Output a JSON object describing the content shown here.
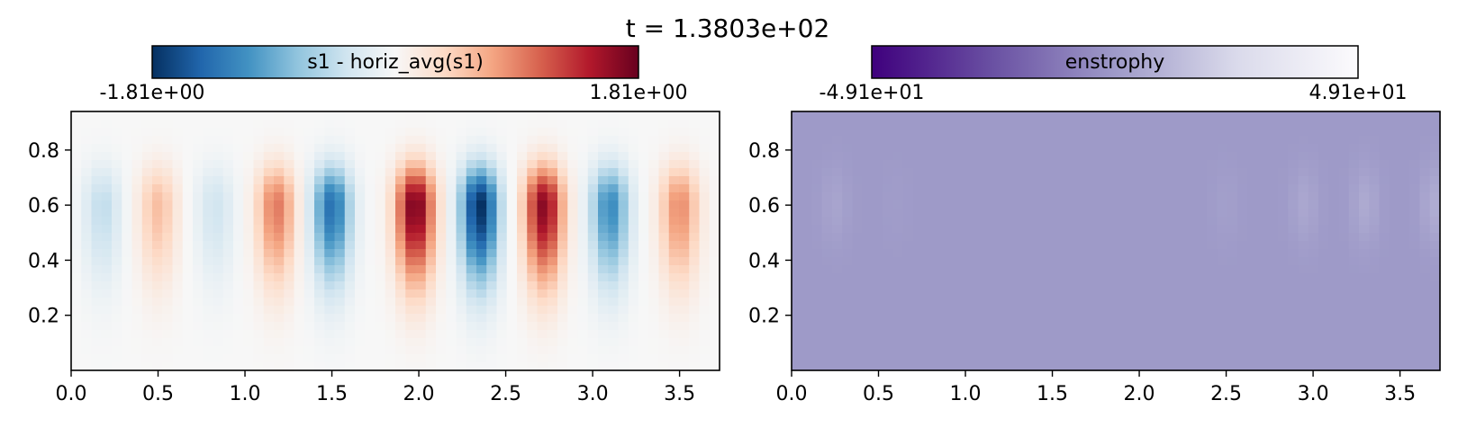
{
  "figure_title": "t = 1.3803e+02",
  "chart_data": [
    {
      "type": "heatmap",
      "colorbar_label": "s1 - horiz_avg(s1)",
      "colormap": "RdBu_r",
      "vmin_label": "-1.81e+00",
      "vmax_label": "1.81e+00",
      "vmin": -1.81,
      "vmax": 1.81,
      "xlim": [
        0,
        3.73
      ],
      "ylim": [
        0,
        0.94
      ],
      "xticks": [
        "0.0",
        "0.5",
        "1.0",
        "1.5",
        "2.0",
        "2.5",
        "3.0",
        "3.5"
      ],
      "yticks": [
        "0.2",
        "0.4",
        "0.6",
        "0.8"
      ],
      "field": {
        "description_of_structure": "vertical cells alternating sign along x",
        "cell_centers_x": [
          0.18,
          0.5,
          0.83,
          1.18,
          1.5,
          1.98,
          2.35,
          2.72,
          3.1,
          3.5
        ],
        "cell_amplitudes": [
          -0.45,
          0.55,
          -0.35,
          0.95,
          -1.35,
          1.75,
          -1.81,
          1.65,
          -1.15,
          0.85
        ],
        "vertical_center_y": 0.6
      }
    },
    {
      "type": "heatmap",
      "colorbar_label": "enstrophy",
      "colormap": "Purples_r",
      "vmin_label": "-4.91e+01",
      "vmax_label": "4.91e+01",
      "vmin": -49.1,
      "vmax": 49.1,
      "xlim": [
        0,
        3.73
      ],
      "ylim": [
        0,
        0.94
      ],
      "xticks": [
        "0.0",
        "0.5",
        "1.0",
        "1.5",
        "2.0",
        "2.5",
        "3.0",
        "3.5"
      ],
      "yticks": [
        "0.2",
        "0.4",
        "0.6",
        "0.8"
      ],
      "field": {
        "background_value": 0,
        "blob_centers_x": [
          0.25,
          0.6,
          2.5,
          2.95,
          3.3,
          3.7
        ],
        "blob_amplitudes": [
          4,
          1,
          2,
          5,
          6,
          7
        ],
        "vertical_center_y": 0.6
      }
    }
  ]
}
